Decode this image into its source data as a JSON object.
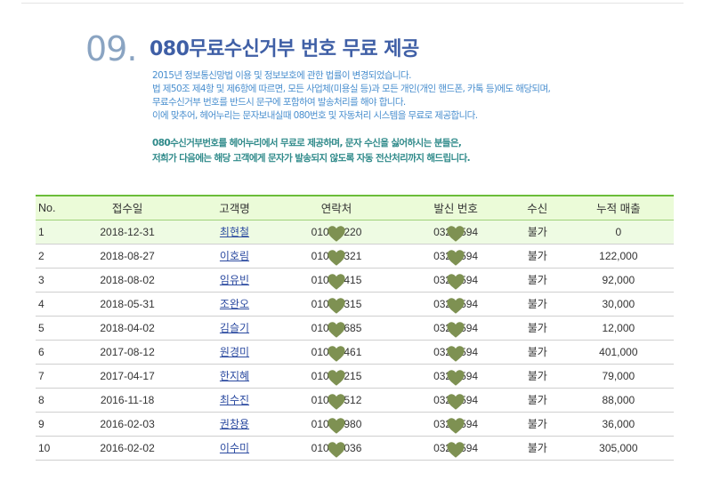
{
  "section": {
    "number": "09.",
    "title": "080무료수신거부 번호 무료 제공"
  },
  "description": [
    "2015년 정보통신망법 이용 및 정보보호에 관한 법률이 변경되었습니다.",
    "법 제50조 제4항 및 제6항에 따르면, 모든 사업체(미용실 등)과 모든 개인(개인 핸드폰, 카톡 등)에도 해당되며,",
    "무료수신거부 번호를 반드시 문구에 포함하여 발송처리를 해야 합니다.",
    "이에 맞추어, 헤어누리는 문자보내실때 080번호 및 자동처리 시스템을 무료로 제공합니다."
  ],
  "notice": [
    "080수신거부번호를 헤어누리에서 무료로 제공하며, 문자 수신을 싫어하시는 분들은,",
    "저희가 다음에는 해당 고객에게 문자가 발송되지 않도록 자동 전산처리까지 해드립니다."
  ],
  "table": {
    "headers": [
      "No.",
      "접수일",
      "고객명",
      "연락처",
      "발신 번호",
      "수신",
      "누적 매출"
    ],
    "rows": [
      {
        "no": "1",
        "date": "2018-12-31",
        "name": "최현철",
        "phone": "0104   220",
        "sender": "032   594",
        "receive": "불가",
        "sales": "0"
      },
      {
        "no": "2",
        "date": "2018-08-27",
        "name": "이호림",
        "phone": "0108   321",
        "sender": "032   594",
        "receive": "불가",
        "sales": "122,000"
      },
      {
        "no": "3",
        "date": "2018-08-02",
        "name": "임유빈",
        "phone": "0107   415",
        "sender": "032   594",
        "receive": "불가",
        "sales": "92,000"
      },
      {
        "no": "4",
        "date": "2018-05-31",
        "name": "조완오",
        "phone": "0108   315",
        "sender": "032   594",
        "receive": "불가",
        "sales": "30,000"
      },
      {
        "no": "5",
        "date": "2018-04-02",
        "name": "김슬기",
        "phone": "0102   685",
        "sender": "032   594",
        "receive": "불가",
        "sales": "12,000"
      },
      {
        "no": "6",
        "date": "2017-08-12",
        "name": "원경미",
        "phone": "0109   461",
        "sender": "032   594",
        "receive": "불가",
        "sales": "401,000"
      },
      {
        "no": "7",
        "date": "2017-04-17",
        "name": "한지혜",
        "phone": "0104   215",
        "sender": "032   594",
        "receive": "불가",
        "sales": "79,000"
      },
      {
        "no": "8",
        "date": "2016-11-18",
        "name": "최수진",
        "phone": "0102   512",
        "sender": "032   594",
        "receive": "불가",
        "sales": "88,000"
      },
      {
        "no": "9",
        "date": "2016-02-03",
        "name": "권창용",
        "phone": "0104   980",
        "sender": "032   594",
        "receive": "불가",
        "sales": "36,000"
      },
      {
        "no": "10",
        "date": "2016-02-02",
        "name": "이수미",
        "phone": "0104   036",
        "sender": "032   594",
        "receive": "불가",
        "sales": "305,000"
      }
    ]
  },
  "colors": {
    "accent": "#6bbd3a",
    "title": "#3f5fa6",
    "heart_mask": "#7e9152"
  }
}
